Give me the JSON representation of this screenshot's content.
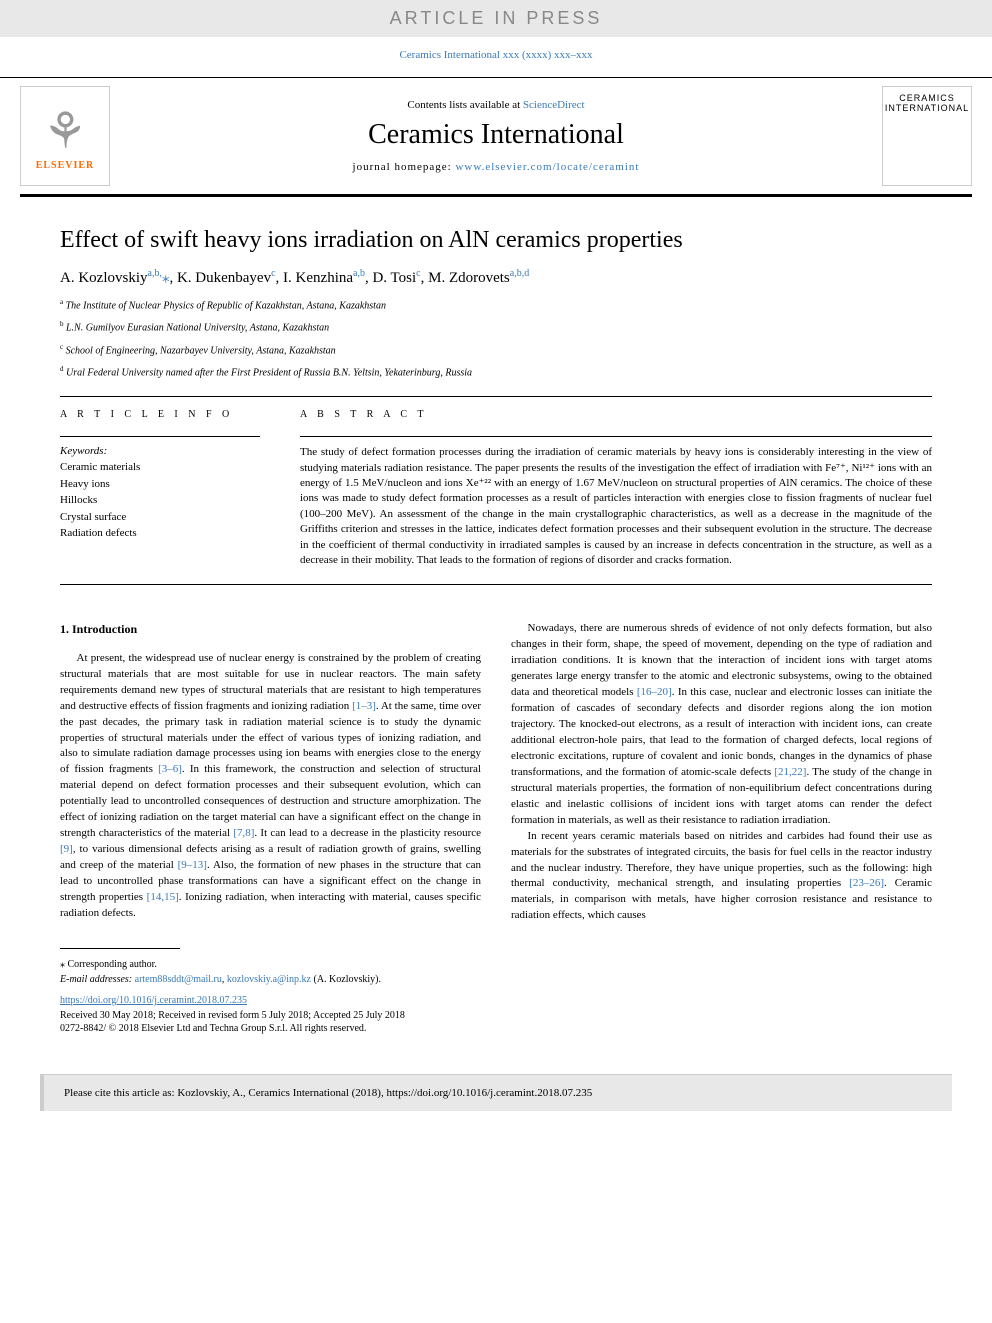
{
  "header": {
    "article_in_press": "ARTICLE IN PRESS",
    "citation_top": "Ceramics International xxx (xxxx) xxx–xxx",
    "contents_text": "Contents lists available at ",
    "contents_link": "ScienceDirect",
    "journal_name": "Ceramics International",
    "homepage_text": "journal homepage: ",
    "homepage_link": "www.elsevier.com/locate/ceramint",
    "elsevier_label": "ELSEVIER",
    "cover_line1": "CERAMICS",
    "cover_line2": "INTERNATIONAL"
  },
  "article": {
    "title": "Effect of swift heavy ions irradiation on AlN ceramics properties",
    "authors_html": "A. Kozlovskiy<sup>a,b,</sup><span class='star'>⁎</span>, K. Dukenbayev<sup>c</sup>, I. Kenzhina<sup>a,b</sup>, D. Tosi<sup>c</sup>, M. Zdorovets<sup>a,b,d</sup>",
    "affiliations": [
      {
        "sup": "a",
        "text": "The Institute of Nuclear Physics of Republic of Kazakhstan, Astana, Kazakhstan"
      },
      {
        "sup": "b",
        "text": "L.N. Gumilyov Eurasian National University, Astana, Kazakhstan"
      },
      {
        "sup": "c",
        "text": "School of Engineering, Nazarbayev University, Astana, Kazakhstan"
      },
      {
        "sup": "d",
        "text": "Ural Federal University named after the First President of Russia B.N. Yeltsin, Yekaterinburg, Russia"
      }
    ]
  },
  "info": {
    "heading": "A R T I C L E  I N F O",
    "keywords_label": "Keywords:",
    "keywords": [
      "Ceramic materials",
      "Heavy ions",
      "Hillocks",
      "Crystal surface",
      "Radiation defects"
    ]
  },
  "abstract": {
    "heading": "A B S T R A C T",
    "text": "The study of defect formation processes during the irradiation of ceramic materials by heavy ions is considerably interesting in the view of studying materials radiation resistance. The paper presents the results of the investigation the effect of irradiation with Fe⁷⁺, Ni¹²⁺ ions with an energy of 1.5 MeV/nucleon and ions Xe⁺²² with an energy of 1.67 MeV/nucleon on structural properties of AlN ceramics. The choice of these ions was made to study defect formation processes as a result of particles interaction with energies close to fission fragments of nuclear fuel (100–200 MeV). An assessment of the change in the main crystallographic characteristics, as well as a decrease in the magnitude of the Griffiths criterion and stresses in the lattice, indicates defect formation processes and their subsequent evolution in the structure. The decrease in the coefficient of thermal conductivity in irradiated samples is caused by an increase in defects concentration in the structure, as well as a decrease in their mobility. That leads to the formation of regions of disorder and cracks formation."
  },
  "body": {
    "heading": "1. Introduction",
    "col1": {
      "p1": "At present, the widespread use of nuclear energy is constrained by the problem of creating structural materials that are most suitable for use in nuclear reactors. The main safety requirements demand new types of structural materials that are resistant to high temperatures and destructive effects of fission fragments and ionizing radiation [1–3]. At the same, time over the past decades, the primary task in radiation material science is to study the dynamic properties of structural materials under the effect of various types of ionizing radiation, and also to simulate radiation damage processes using ion beams with energies close to the energy of fission fragments [3–6]. In this framework, the construction and selection of structural material depend on defect formation processes and their subsequent evolution, which can potentially lead to uncontrolled consequences of destruction and structure amorphization. The effect of ionizing radiation on the target material can have a significant effect on the change in strength characteristics of the material [7,8]. It can lead to a decrease in the plasticity resource [9], to various dimensional defects arising as a result of radiation growth of grains, swelling and creep of the material [9–13]. Also, the formation of new phases in the structure that can lead to uncontrolled phase transformations can have a significant effect on the change in strength properties [14,15]. Ionizing radiation, when interacting with material, causes specific radiation defects."
    },
    "col2": {
      "p1": "Nowadays, there are numerous shreds of evidence of not only defects formation, but also changes in their form, shape, the speed of movement, depending on the type of radiation and irradiation conditions. It is known that the interaction of incident ions with target atoms generates large energy transfer to the atomic and electronic subsystems, owing to the obtained data and theoretical models [16–20]. In this case, nuclear and electronic losses can initiate the formation of cascades of secondary defects and disorder regions along the ion motion trajectory. The knocked-out electrons, as a result of interaction with incident ions, can create additional electron-hole pairs, that lead to the formation of charged defects, local regions of electronic excitations, rupture of covalent and ionic bonds, changes in the dynamics of phase transformations, and the formation of atomic-scale defects [21,22]. The study of the change in structural materials properties, the formation of non-equilibrium defect concentrations during elastic and inelastic collisions of incident ions with target atoms can render the defect formation in materials, as well as their resistance to radiation irradiation.",
      "p2": "In recent years ceramic materials based on nitrides and carbides had found their use as materials for the substrates of integrated circuits, the basis for fuel cells in the reactor industry and the nuclear industry. Therefore, they have unique properties, such as the following: high thermal conductivity, mechanical strength, and insulating properties [23–26]. Ceramic materials, in comparison with metals, have higher corrosion resistance and resistance to radiation effects, which causes"
    }
  },
  "footer": {
    "corresponding": "⁎ Corresponding author.",
    "email_label": "E-mail addresses: ",
    "email1": "artem88sddt@mail.ru",
    "email2": "kozlovskiy.a@inp.kz",
    "email_suffix": " (A. Kozlovskiy).",
    "doi": "https://doi.org/10.1016/j.ceramint.2018.07.235",
    "received": "Received 30 May 2018; Received in revised form 5 July 2018; Accepted 25 July 2018",
    "copyright": "0272-8842/ © 2018 Elsevier Ltd and Techna Group S.r.l. All rights reserved."
  },
  "cite_box": "Please cite this article as: Kozlovskiy, A., Ceramics International (2018), https://doi.org/10.1016/j.ceramint.2018.07.235",
  "refs": {
    "r1": "[1–3]",
    "r2": "[3–6]",
    "r3": "[7,8]",
    "r4": "[9]",
    "r5": "[9–13]",
    "r6": "[14,15]",
    "r7": "[16–20]",
    "r8": "[21,22]",
    "r9": "[23–26]"
  }
}
